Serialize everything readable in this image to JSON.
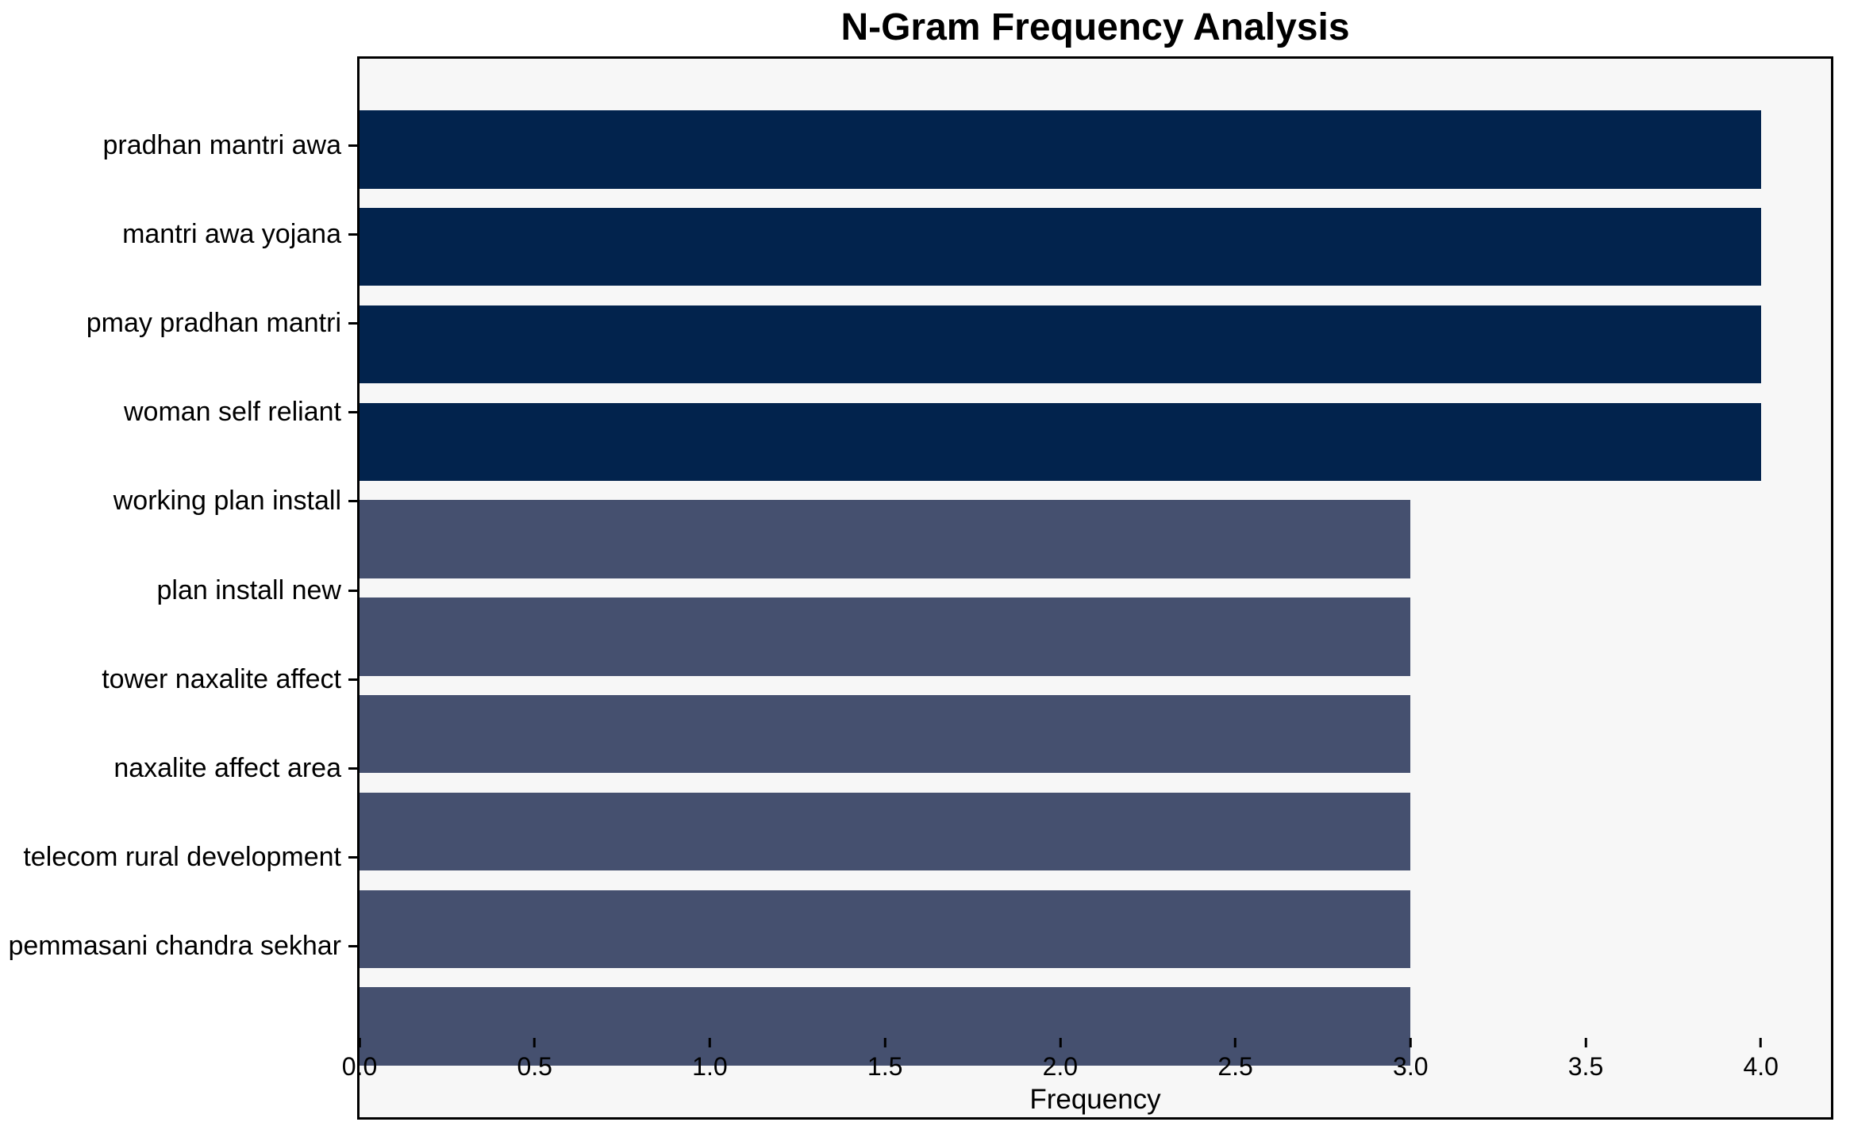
{
  "chart_data": {
    "type": "bar",
    "orientation": "horizontal",
    "title": "N-Gram Frequency Analysis",
    "xlabel": "Frequency",
    "ylabel": "",
    "categories": [
      "pradhan mantri awa",
      "mantri awa yojana",
      "pmay pradhan mantri",
      "woman self reliant",
      "working plan install",
      "plan install new",
      "tower naxalite affect",
      "naxalite affect area",
      "telecom rural development",
      "pemmasani chandra sekhar"
    ],
    "values": [
      4,
      4,
      4,
      4,
      3,
      3,
      3,
      3,
      3,
      3
    ],
    "bar_colors": [
      "#02234d",
      "#02234d",
      "#02234d",
      "#02234d",
      "#45506f",
      "#45506f",
      "#45506f",
      "#45506f",
      "#45506f",
      "#45506f"
    ],
    "xlim": [
      0,
      4.2
    ],
    "xticks": [
      "0.0",
      "0.5",
      "1.0",
      "1.5",
      "2.0",
      "2.5",
      "3.0",
      "3.5",
      "4.0"
    ],
    "grid": false,
    "legend": null,
    "colors": {
      "bar_high": "#02234d",
      "bar_low": "#45506f",
      "plot_background": "#f7f7f7",
      "figure_background": "#ffffff",
      "spine": "#000000",
      "text": "#000000"
    }
  }
}
